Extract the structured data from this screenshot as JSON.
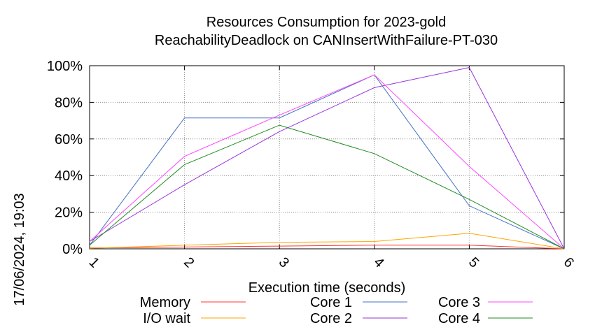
{
  "chart_data": {
    "type": "line",
    "title_line1": "Resources Consumption for 2023-gold",
    "title_line2": "ReachabilityDeadlock on CANInsertWithFailure-PT-030",
    "xlabel": "Execution time (seconds)",
    "side_label": "17/06/2024, 19:03",
    "x": [
      1,
      2,
      3,
      4,
      5,
      6
    ],
    "xlim": [
      1,
      6
    ],
    "ylim": [
      0,
      100
    ],
    "x_ticks": [
      "1",
      "2",
      "3",
      "4",
      "5",
      "6"
    ],
    "y_ticks": [
      "0%",
      "20%",
      "40%",
      "60%",
      "80%",
      "100%"
    ],
    "grid": true,
    "legend_position": "bottom",
    "series": [
      {
        "name": "Memory",
        "color": "#ff3333",
        "values": [
          0.5,
          1,
          1.5,
          2,
          2,
          0
        ]
      },
      {
        "name": "I/O wait",
        "color": "#ffa500",
        "values": [
          0.3,
          2,
          3.5,
          4,
          8.5,
          0
        ]
      },
      {
        "name": "Core 1",
        "color": "#4472c4",
        "values": [
          2,
          71.5,
          71.5,
          95,
          23.5,
          0
        ]
      },
      {
        "name": "Core 2",
        "color": "#9933dd",
        "values": [
          4,
          35,
          64,
          88,
          99,
          0
        ]
      },
      {
        "name": "Core 3",
        "color": "#ff44ff",
        "values": [
          4,
          50.5,
          73,
          95,
          45,
          0
        ]
      },
      {
        "name": "Core 4",
        "color": "#228b22",
        "values": [
          2,
          46,
          67.5,
          52,
          27,
          0
        ]
      }
    ]
  }
}
